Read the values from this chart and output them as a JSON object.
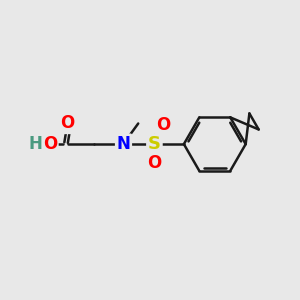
{
  "background_color": "#e8e8e8",
  "bond_color": "#1a1a1a",
  "bond_width": 1.8,
  "atom_colors": {
    "O": "#ff0000",
    "N": "#0000ff",
    "S": "#cccc00",
    "H": "#4a9a80",
    "C": "#1a1a1a"
  },
  "font_size": 12,
  "fig_width": 3.0,
  "fig_height": 3.0
}
